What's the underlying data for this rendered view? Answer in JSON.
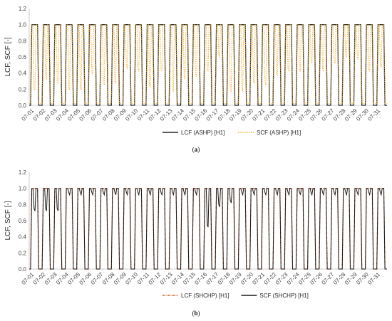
{
  "chart_data": [
    {
      "type": "line",
      "panel_label": "a",
      "ylabel": "LCF, SCF [-]",
      "ylim": [
        0,
        1.2
      ],
      "yticks": [
        "0.0",
        "0.2",
        "0.4",
        "0.6",
        "0.8",
        "1.0",
        "1.2"
      ],
      "categories": [
        "07-01",
        "07-02",
        "07-03",
        "07-04",
        "07-05",
        "07-06",
        "07-07",
        "07-08",
        "07-09",
        "07-10",
        "07-11",
        "07-12",
        "07-13",
        "07-14",
        "07-15",
        "07-16",
        "07-17",
        "07-18",
        "07-19",
        "07-20",
        "07-21",
        "07-22",
        "07-23",
        "07-24",
        "07-25",
        "07-26",
        "07-27",
        "07-28",
        "07-29",
        "07-30",
        "07-31"
      ],
      "legend_position": "bottom",
      "series": [
        {
          "name": "LCF (ASHP) [H1]",
          "color": "#262626",
          "style": "solid",
          "daily_on": [
            1.0,
            1.0,
            1.0,
            1.0,
            1.0,
            1.0,
            1.0,
            1.0,
            1.0,
            1.0,
            1.0,
            1.0,
            1.0,
            1.0,
            1.0,
            1.0,
            1.0,
            1.0,
            1.0,
            1.0,
            1.0,
            1.0,
            1.0,
            1.0,
            1.0,
            1.0,
            1.0,
            1.0,
            1.0,
            1.0,
            1.0
          ],
          "daily_off": 0.0
        },
        {
          "name": "SCF (ASHP) [H1]",
          "color": "#f2a91c",
          "style": "dotted",
          "daily_on": [
            1.0,
            1.0,
            1.0,
            1.0,
            1.0,
            1.0,
            1.0,
            1.0,
            1.0,
            1.0,
            1.0,
            1.0,
            1.0,
            1.0,
            1.0,
            1.0,
            1.0,
            1.0,
            1.0,
            1.0,
            1.0,
            1.0,
            1.0,
            1.0,
            1.0,
            1.0,
            1.0,
            1.0,
            1.0,
            1.0,
            1.0
          ],
          "daily_dip": [
            0.22,
            0.35,
            0.3,
            0.22,
            0.22,
            0.42,
            0.28,
            0.3,
            0.48,
            0.45,
            0.25,
            0.45,
            0.2,
            0.35,
            0.38,
            0.45,
            0.62,
            0.2,
            0.2,
            0.3,
            0.28,
            0.4,
            0.45,
            0.45,
            0.55,
            0.45,
            0.55,
            0.62,
            0.6,
            0.45,
            0.5
          ],
          "daily_off": 0.02
        }
      ]
    },
    {
      "type": "line",
      "panel_label": "b",
      "ylabel": "LCF, SCF [-]",
      "ylim": [
        0,
        1.2
      ],
      "yticks": [
        "0.0",
        "0.2",
        "0.4",
        "0.6",
        "0.8",
        "1.0",
        "1.2"
      ],
      "categories": [
        "07-01",
        "07-02",
        "07-03",
        "07-04",
        "07-05",
        "07-06",
        "07-07",
        "07-08",
        "07-09",
        "07-10",
        "07-11",
        "07-12",
        "07-13",
        "07-14",
        "07-15",
        "07-16",
        "07-17",
        "07-18",
        "07-19",
        "07-20",
        "07-21",
        "07-22",
        "07-23",
        "07-24",
        "07-25",
        "07-26",
        "07-27",
        "07-28",
        "07-29",
        "07-30",
        "07-31"
      ],
      "legend_position": "bottom",
      "series": [
        {
          "name": "LCF (SHCHP) [H1]",
          "color": "#d05a1e",
          "style": "dash-dot",
          "daily_on": [
            1.0,
            1.0,
            1.0,
            1.0,
            1.0,
            1.0,
            1.0,
            1.0,
            1.0,
            1.0,
            1.0,
            1.0,
            1.0,
            1.0,
            1.0,
            1.0,
            1.0,
            1.0,
            1.0,
            1.0,
            1.0,
            1.0,
            1.0,
            1.0,
            1.0,
            1.0,
            1.0,
            1.0,
            1.0,
            1.0,
            1.0
          ],
          "daily_off": 0.0
        },
        {
          "name": "SCF (SHCHP) [H1]",
          "color": "#1a1a1a",
          "style": "solid",
          "daily_on": [
            1.0,
            1.0,
            1.0,
            1.0,
            1.0,
            1.0,
            1.0,
            1.0,
            1.0,
            1.0,
            1.0,
            1.0,
            1.0,
            1.0,
            1.0,
            1.0,
            1.0,
            1.0,
            1.0,
            1.0,
            1.0,
            1.0,
            1.0,
            1.0,
            1.0,
            1.0,
            1.0,
            1.0,
            1.0,
            1.0,
            1.0
          ],
          "daily_dip": [
            0.75,
            0.75,
            0.75,
            0.95,
            0.95,
            0.95,
            0.95,
            0.95,
            0.95,
            0.95,
            0.95,
            0.95,
            0.95,
            0.95,
            0.95,
            0.55,
            0.8,
            0.85,
            0.95,
            0.95,
            0.95,
            0.95,
            0.95,
            0.95,
            0.95,
            0.95,
            0.95,
            0.95,
            0.95,
            0.95,
            0.95
          ],
          "daily_off": 0.0
        }
      ]
    }
  ]
}
